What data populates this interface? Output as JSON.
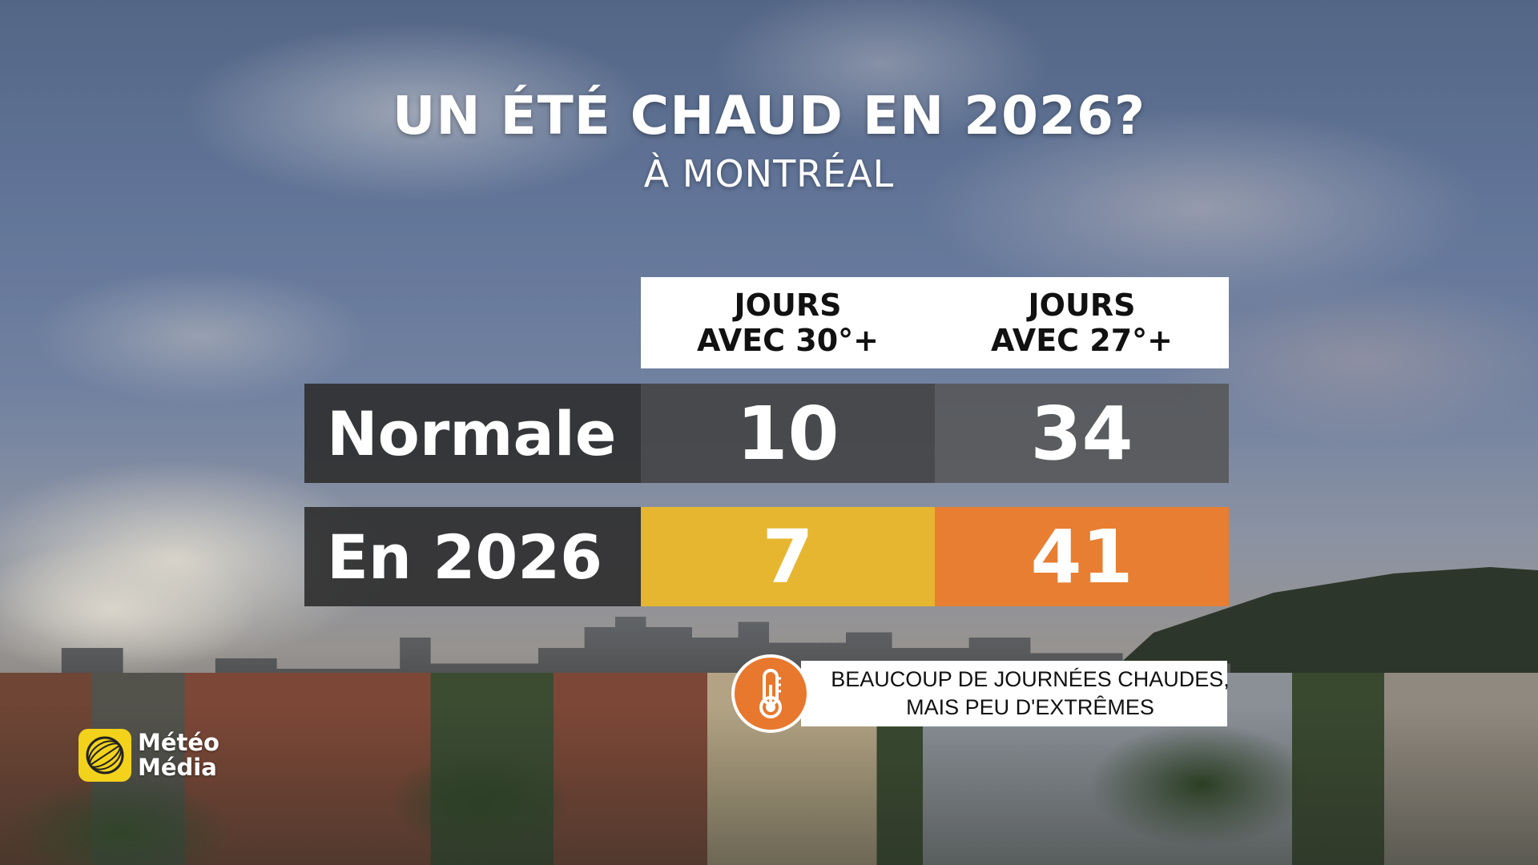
{
  "title": "UN ÉTÉ CHAUD EN 2026?",
  "subtitle": "À MONTRÉAL",
  "table": {
    "columns": [
      {
        "line1": "JOURS",
        "line2": "AVEC 30°+"
      },
      {
        "line1": "JOURS",
        "line2": "AVEC 27°+"
      }
    ],
    "rows": [
      {
        "label": "Normale",
        "values": [
          "10",
          "34"
        ]
      },
      {
        "label": "En 2026",
        "values": [
          "7",
          "41"
        ]
      }
    ]
  },
  "colors": {
    "cell_2026_30": "#e7b631",
    "cell_2026_27": "#e77e32",
    "icon_background": "#e8782d",
    "logo_background": "#f2d21b"
  },
  "note": {
    "icon": "thermometer-icon",
    "line1": "BEAUCOUP DE JOURNÉES CHAUDES,",
    "line2": "MAIS PEU D'EXTRÊMES"
  },
  "logo": {
    "line1": "Météo",
    "line2": "Média",
    "icon": "globe-logo-icon"
  }
}
